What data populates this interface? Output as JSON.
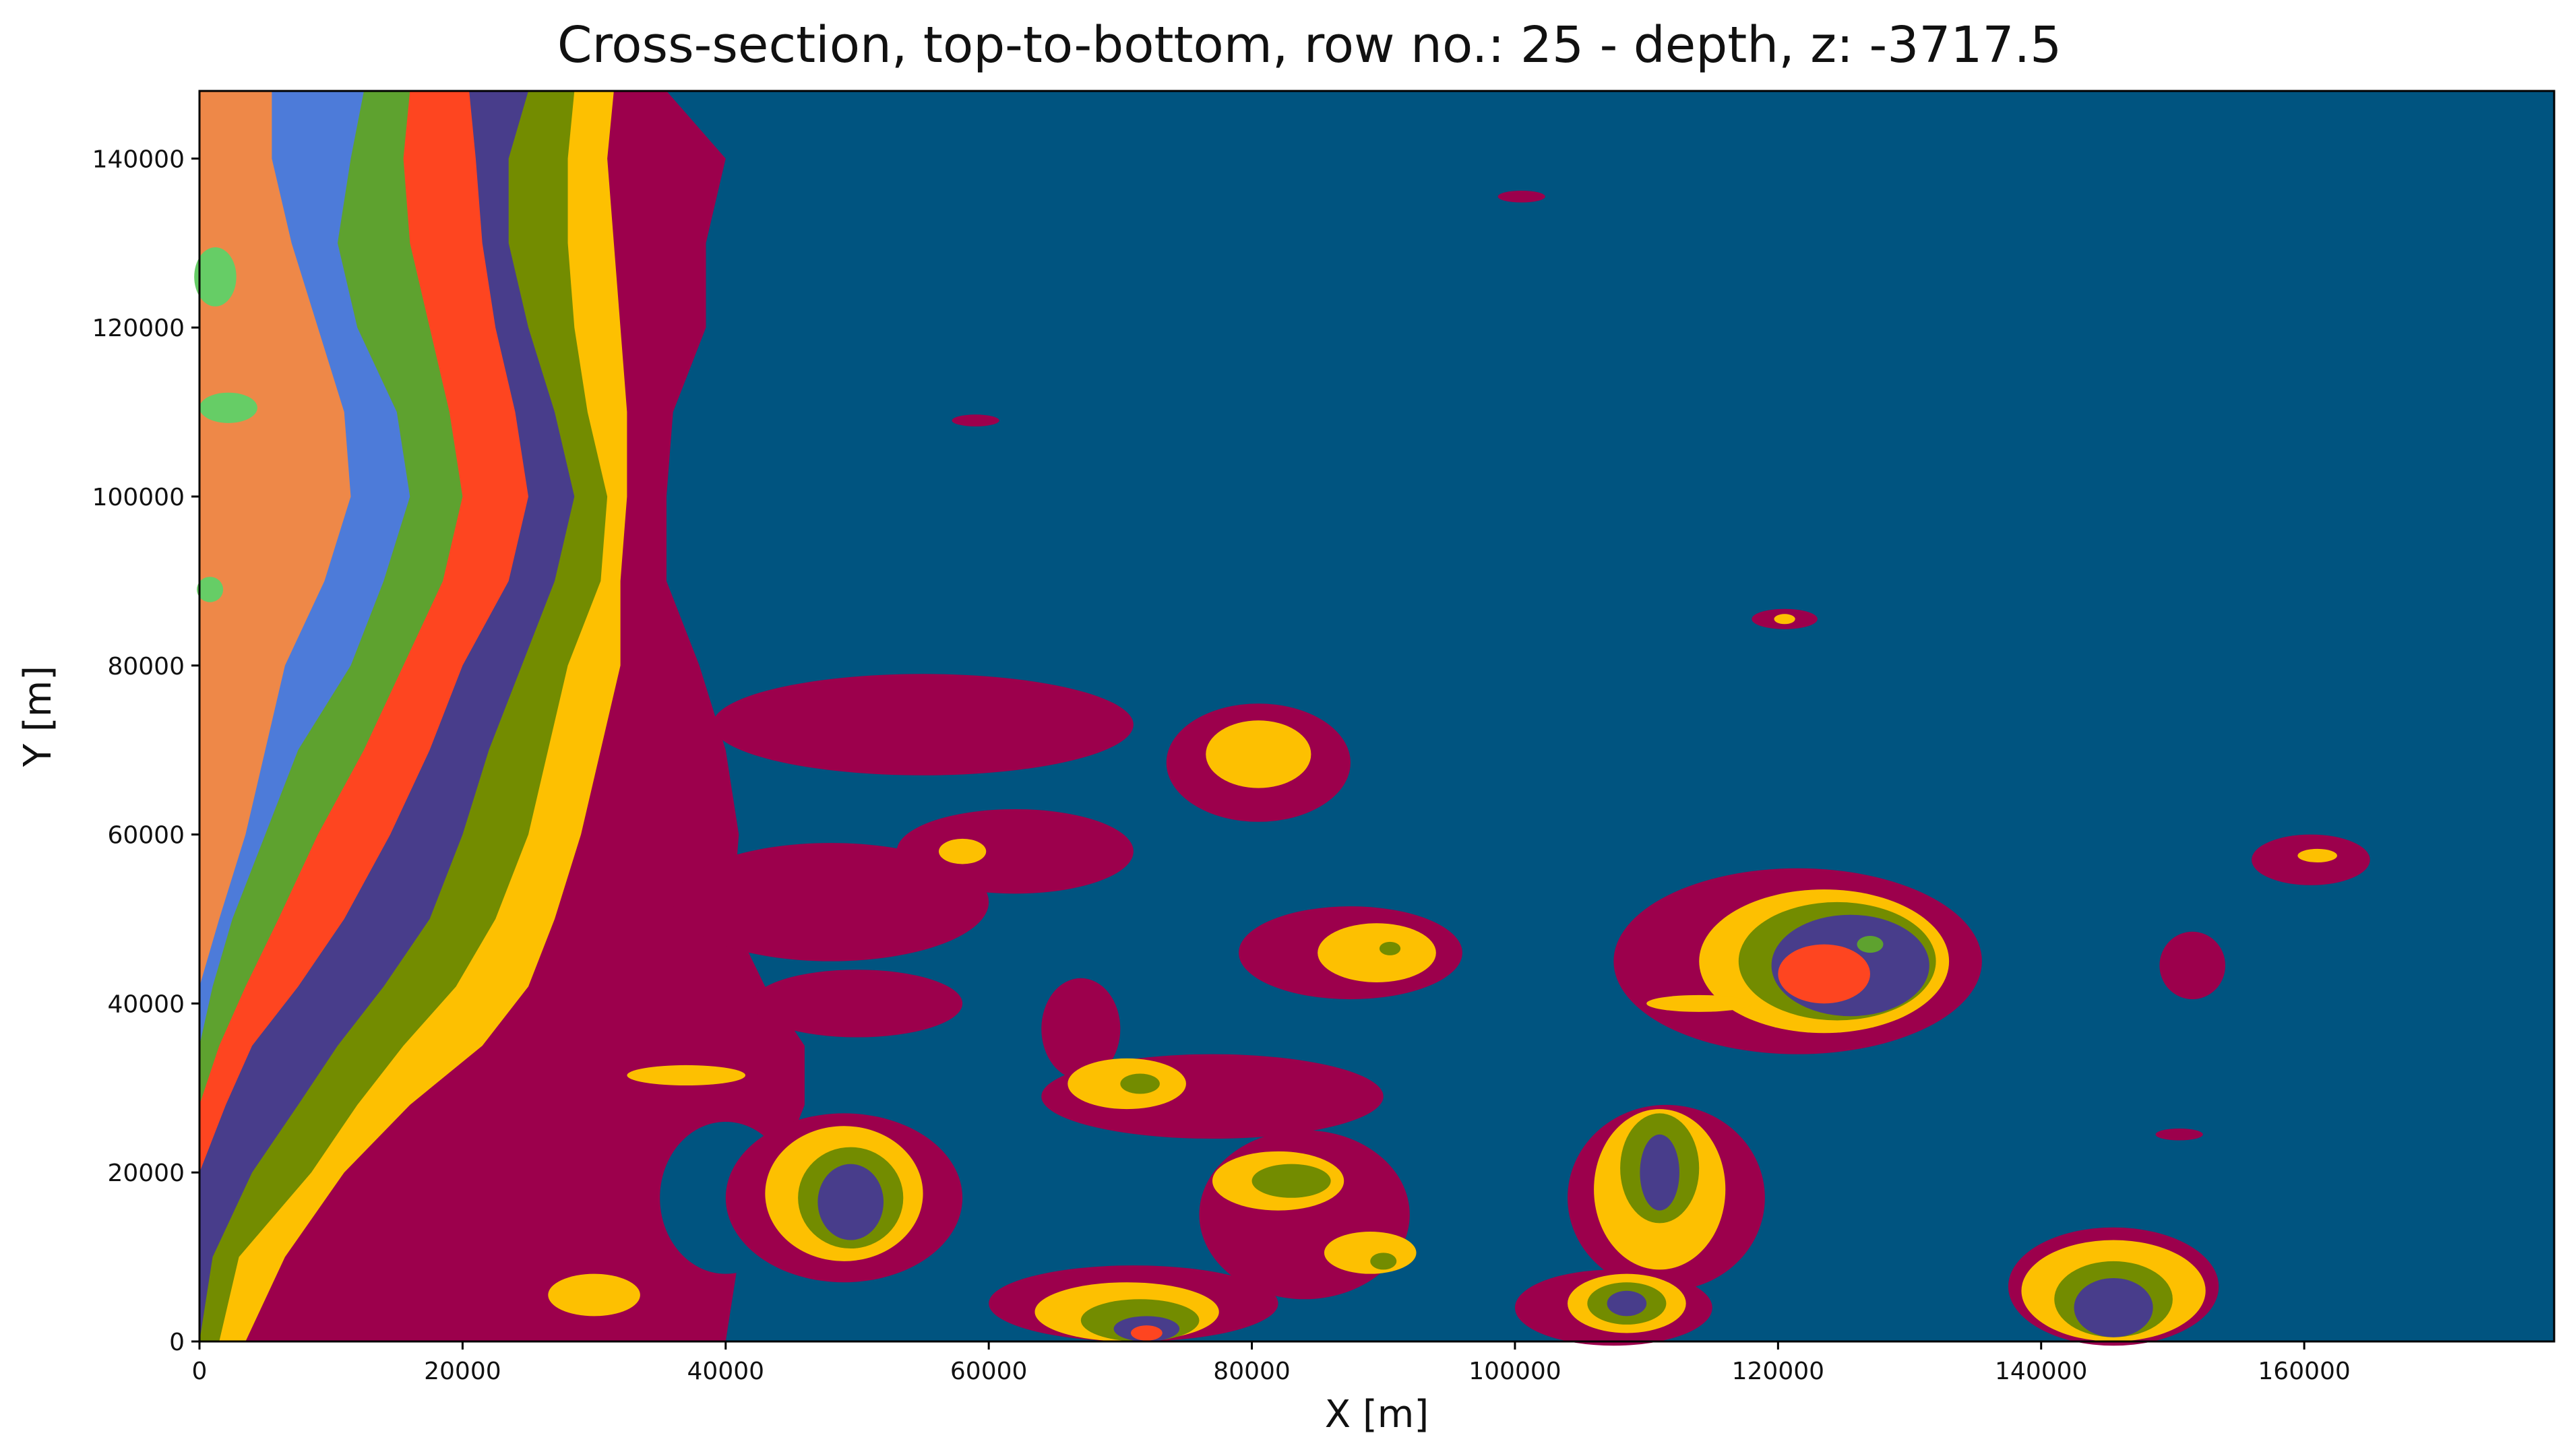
{
  "chart_data": {
    "type": "heatmap",
    "title": "Cross-section, top-to-bottom, row no.: 25 - depth, z: -3717.5",
    "xlabel": "X [m]",
    "ylabel": "Y [m]",
    "xlim": [
      0,
      179000
    ],
    "ylim": [
      0,
      148000
    ],
    "xticks": [
      "0",
      "20000",
      "40000",
      "60000",
      "80000",
      "100000",
      "120000",
      "140000",
      "160000"
    ],
    "yticks": [
      "0",
      "20000",
      "40000",
      "60000",
      "80000",
      "100000",
      "120000",
      "140000"
    ],
    "xtick_values": [
      0,
      20000,
      40000,
      60000,
      80000,
      100000,
      120000,
      140000,
      160000
    ],
    "ytick_values": [
      0,
      20000,
      40000,
      60000,
      80000,
      100000,
      120000,
      140000
    ],
    "grid": false,
    "legend": "none",
    "colors": {
      "background": "#005480",
      "maroon": "#9c004c",
      "yellow": "#fdc001",
      "olive": "#738c00",
      "purple": "#483d8b",
      "red": "#fe4520",
      "green": "#5ea22f",
      "blue": "#4d7bd9",
      "orange": "#ee8848",
      "lightgreen": "#66cd66"
    },
    "left_boundaries": {
      "y": [
        148000,
        140000,
        130000,
        120000,
        110000,
        100000,
        90000,
        80000,
        70000,
        60000,
        50000,
        42000,
        35000,
        28000,
        20000,
        10000,
        0
      ],
      "orange_to_blue": [
        5500,
        5500,
        7000,
        9000,
        11000,
        11500,
        9500,
        6500,
        5000,
        3500,
        1500,
        0,
        0,
        0,
        0,
        0,
        0
      ],
      "blue_to_green": [
        12500,
        11500,
        10500,
        12000,
        15000,
        16000,
        14000,
        11500,
        7500,
        5000,
        2500,
        1000,
        0,
        0,
        0,
        0,
        0
      ],
      "green_to_red": [
        16000,
        15500,
        16000,
        17500,
        19000,
        20000,
        18500,
        15500,
        12500,
        9000,
        6000,
        3500,
        1500,
        0,
        0,
        0,
        0
      ],
      "red_to_purple": [
        20500,
        21000,
        21500,
        22500,
        24000,
        25000,
        23500,
        20000,
        17500,
        14500,
        11000,
        7500,
        4000,
        2000,
        0,
        0,
        0
      ],
      "purple_to_olive": [
        25000,
        23500,
        23500,
        25000,
        27000,
        28500,
        27000,
        24500,
        22000,
        20000,
        17500,
        14000,
        10500,
        7500,
        4000,
        1000,
        0
      ],
      "olive_to_yellow": [
        28500,
        28000,
        28000,
        28500,
        29500,
        31000,
        30500,
        28000,
        26500,
        25000,
        22500,
        19500,
        15500,
        12000,
        8500,
        3000,
        1500
      ],
      "yellow_to_maroon": [
        31500,
        31000,
        31500,
        32000,
        32500,
        32500,
        32000,
        32000,
        30500,
        29000,
        27000,
        25000,
        21500,
        16000,
        11000,
        6500,
        3500
      ],
      "maroon_to_background": [
        35500,
        40000,
        38500,
        38500,
        36000,
        35500,
        35500,
        38000,
        40000,
        41000,
        40500,
        43000,
        46000,
        46000,
        44000,
        41000,
        40000
      ]
    },
    "blobs": [
      {
        "color": "maroon",
        "cx": 55000,
        "cy": 73000,
        "rx": 16000,
        "ry": 6000
      },
      {
        "color": "maroon",
        "cx": 62000,
        "cy": 58000,
        "rx": 9000,
        "ry": 5000
      },
      {
        "color": "maroon",
        "cx": 48000,
        "cy": 52000,
        "rx": 12000,
        "ry": 7000
      },
      {
        "color": "maroon",
        "cx": 50000,
        "cy": 40000,
        "rx": 8000,
        "ry": 4000
      },
      {
        "color": "yellow",
        "cx": 58000,
        "cy": 58000,
        "rx": 1800,
        "ry": 1500
      },
      {
        "color": "background",
        "cx": 40000,
        "cy": 17000,
        "rx": 5000,
        "ry": 9000
      },
      {
        "color": "yellow",
        "cx": 37000,
        "cy": 31500,
        "rx": 4500,
        "ry": 1200
      },
      {
        "color": "yellow",
        "cx": 30000,
        "cy": 5500,
        "rx": 3500,
        "ry": 2500
      },
      {
        "color": "maroon",
        "cx": 80500,
        "cy": 68500,
        "rx": 7000,
        "ry": 7000
      },
      {
        "color": "yellow",
        "cx": 80500,
        "cy": 69500,
        "rx": 4000,
        "ry": 4000
      },
      {
        "color": "maroon",
        "cx": 67000,
        "cy": 37000,
        "rx": 3000,
        "ry": 6000
      },
      {
        "color": "maroon",
        "cx": 77000,
        "cy": 29000,
        "rx": 13000,
        "ry": 5000
      },
      {
        "color": "yellow",
        "cx": 70500,
        "cy": 30500,
        "rx": 4500,
        "ry": 3000
      },
      {
        "color": "olive",
        "cx": 71500,
        "cy": 30500,
        "rx": 1500,
        "ry": 1200
      },
      {
        "color": "maroon",
        "cx": 87500,
        "cy": 46000,
        "rx": 8500,
        "ry": 5500
      },
      {
        "color": "yellow",
        "cx": 89500,
        "cy": 46000,
        "rx": 4500,
        "ry": 3500
      },
      {
        "color": "olive",
        "cx": 90500,
        "cy": 46500,
        "rx": 800,
        "ry": 800
      },
      {
        "color": "maroon",
        "cx": 49000,
        "cy": 17000,
        "rx": 9000,
        "ry": 10000
      },
      {
        "color": "yellow",
        "cx": 49000,
        "cy": 17500,
        "rx": 6000,
        "ry": 8000
      },
      {
        "color": "olive",
        "cx": 49500,
        "cy": 17000,
        "rx": 4000,
        "ry": 6000
      },
      {
        "color": "purple",
        "cx": 49500,
        "cy": 16500,
        "rx": 2500,
        "ry": 4500
      },
      {
        "color": "maroon",
        "cx": 84000,
        "cy": 15000,
        "rx": 8000,
        "ry": 10000
      },
      {
        "color": "yellow",
        "cx": 82000,
        "cy": 19000,
        "rx": 5000,
        "ry": 3500
      },
      {
        "color": "olive",
        "cx": 83000,
        "cy": 19000,
        "rx": 3000,
        "ry": 2000
      },
      {
        "color": "yellow",
        "cx": 89000,
        "cy": 10500,
        "rx": 3500,
        "ry": 2500
      },
      {
        "color": "olive",
        "cx": 90000,
        "cy": 9500,
        "rx": 1000,
        "ry": 1000
      },
      {
        "color": "maroon",
        "cx": 71000,
        "cy": 4500,
        "rx": 11000,
        "ry": 4500
      },
      {
        "color": "yellow",
        "cx": 70500,
        "cy": 3500,
        "rx": 7000,
        "ry": 3500
      },
      {
        "color": "olive",
        "cx": 71500,
        "cy": 2500,
        "rx": 4500,
        "ry": 2500
      },
      {
        "color": "purple",
        "cx": 72000,
        "cy": 1500,
        "rx": 2500,
        "ry": 1500
      },
      {
        "color": "red",
        "cx": 72000,
        "cy": 1000,
        "rx": 1200,
        "ry": 900
      },
      {
        "color": "maroon",
        "cx": 121500,
        "cy": 45000,
        "rx": 14000,
        "ry": 11000
      },
      {
        "color": "yellow",
        "cx": 123500,
        "cy": 45000,
        "rx": 9500,
        "ry": 8500
      },
      {
        "color": "olive",
        "cx": 124500,
        "cy": 45000,
        "rx": 7500,
        "ry": 7000
      },
      {
        "color": "purple",
        "cx": 125500,
        "cy": 44500,
        "rx": 6000,
        "ry": 6000
      },
      {
        "color": "red",
        "cx": 123500,
        "cy": 43500,
        "rx": 3500,
        "ry": 3500
      },
      {
        "color": "green",
        "cx": 127000,
        "cy": 47000,
        "rx": 1000,
        "ry": 1000
      },
      {
        "color": "yellow",
        "cx": 114000,
        "cy": 40000,
        "rx": 4000,
        "ry": 1000
      },
      {
        "color": "maroon",
        "cx": 111500,
        "cy": 17000,
        "rx": 7500,
        "ry": 11000
      },
      {
        "color": "yellow",
        "cx": 111000,
        "cy": 18000,
        "rx": 5000,
        "ry": 9500
      },
      {
        "color": "olive",
        "cx": 111000,
        "cy": 20500,
        "rx": 3000,
        "ry": 6500
      },
      {
        "color": "purple",
        "cx": 111000,
        "cy": 20000,
        "rx": 1500,
        "ry": 4500
      },
      {
        "color": "maroon",
        "cx": 107500,
        "cy": 4000,
        "rx": 7500,
        "ry": 4500
      },
      {
        "color": "yellow",
        "cx": 108500,
        "cy": 4500,
        "rx": 4500,
        "ry": 3500
      },
      {
        "color": "olive",
        "cx": 108500,
        "cy": 4500,
        "rx": 3000,
        "ry": 2500
      },
      {
        "color": "purple",
        "cx": 108500,
        "cy": 4500,
        "rx": 1500,
        "ry": 1500
      },
      {
        "color": "maroon",
        "cx": 145500,
        "cy": 6500,
        "rx": 8000,
        "ry": 7000
      },
      {
        "color": "yellow",
        "cx": 145500,
        "cy": 6000,
        "rx": 7000,
        "ry": 6000
      },
      {
        "color": "olive",
        "cx": 145500,
        "cy": 5000,
        "rx": 4500,
        "ry": 4500
      },
      {
        "color": "purple",
        "cx": 145500,
        "cy": 4000,
        "rx": 3000,
        "ry": 3500
      },
      {
        "color": "maroon",
        "cx": 160500,
        "cy": 57000,
        "rx": 4500,
        "ry": 3000
      },
      {
        "color": "yellow",
        "cx": 161000,
        "cy": 57500,
        "rx": 1500,
        "ry": 800
      },
      {
        "color": "maroon",
        "cx": 151500,
        "cy": 44500,
        "rx": 2500,
        "ry": 4000
      },
      {
        "color": "maroon",
        "cx": 150500,
        "cy": 24500,
        "rx": 1800,
        "ry": 700
      },
      {
        "color": "maroon",
        "cx": 120500,
        "cy": 85500,
        "rx": 2500,
        "ry": 1200
      },
      {
        "color": "yellow",
        "cx": 120500,
        "cy": 85500,
        "rx": 800,
        "ry": 600
      },
      {
        "color": "maroon",
        "cx": 100500,
        "cy": 135500,
        "rx": 1800,
        "ry": 700
      },
      {
        "color": "maroon",
        "cx": 59000,
        "cy": 109000,
        "rx": 1800,
        "ry": 700
      },
      {
        "color": "lightgreen",
        "cx": 1200,
        "cy": 126000,
        "rx": 1600,
        "ry": 3500
      },
      {
        "color": "lightgreen",
        "cx": 2200,
        "cy": 110500,
        "rx": 2200,
        "ry": 1800
      },
      {
        "color": "lightgreen",
        "cx": 800,
        "cy": 89000,
        "rx": 1000,
        "ry": 1500
      }
    ]
  }
}
